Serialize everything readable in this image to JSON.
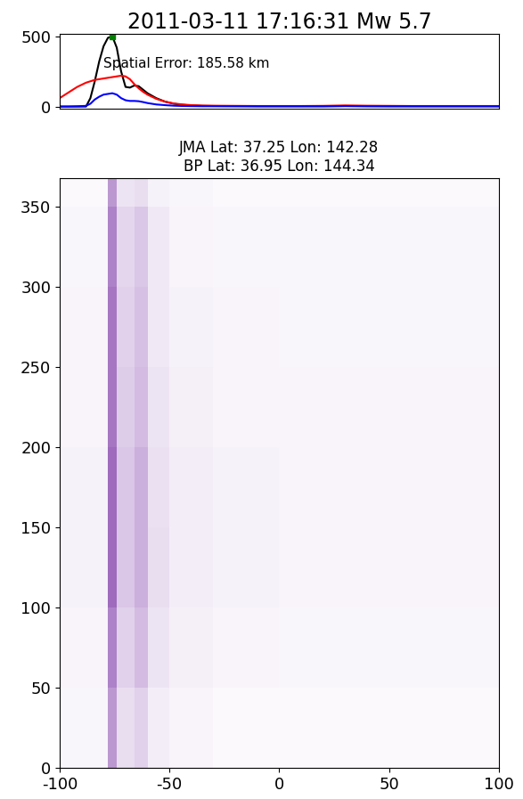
{
  "chart_data": [
    {
      "type": "line",
      "title": "2011-03-11 17:16:31 Mw 5.7",
      "annotation": "Spatial Error: 185.58 km",
      "x": [
        -100,
        -96,
        -92,
        -88,
        -86,
        -84,
        -82,
        -80,
        -78,
        -76,
        -74,
        -72,
        -70,
        -68,
        -66,
        -64,
        -62,
        -60,
        -56,
        -52,
        -48,
        -44,
        -40,
        -35,
        -30,
        -20,
        -10,
        0,
        10,
        20,
        30,
        40,
        50,
        60,
        70,
        80,
        90,
        100
      ],
      "series": [
        {
          "color": "black",
          "values": [
            0,
            0,
            0,
            0,
            60,
            180,
            320,
            430,
            490,
            500,
            420,
            250,
            140,
            135,
            150,
            145,
            120,
            95,
            60,
            35,
            20,
            12,
            8,
            5,
            4,
            3,
            2,
            2,
            2,
            2,
            4,
            3,
            2,
            2,
            2,
            2,
            2,
            2
          ]
        },
        {
          "color": "red",
          "values": [
            60,
            100,
            140,
            170,
            180,
            190,
            195,
            200,
            205,
            210,
            215,
            220,
            215,
            195,
            160,
            130,
            105,
            85,
            55,
            35,
            22,
            15,
            10,
            7,
            6,
            5,
            4,
            4,
            4,
            5,
            8,
            6,
            5,
            4,
            4,
            4,
            4,
            4
          ]
        },
        {
          "color": "blue",
          "values": [
            0,
            0,
            2,
            5,
            20,
            50,
            70,
            85,
            90,
            95,
            85,
            60,
            45,
            40,
            40,
            38,
            32,
            25,
            15,
            10,
            6,
            4,
            3,
            2,
            2,
            2,
            2,
            2,
            2,
            2,
            3,
            2,
            2,
            2,
            2,
            2,
            2,
            2
          ]
        }
      ],
      "peak": {
        "x": -76,
        "value": 500,
        "color": "green",
        "marker": "s"
      },
      "xlim": [
        -100,
        100
      ],
      "ylim": [
        -15,
        520
      ],
      "yticks": [
        0,
        500
      ],
      "tick_labels": "y"
    },
    {
      "type": "heatmap",
      "title": "JMA Lat: 37.25 Lon: 142.28\nBP Lat: 36.95 Lon: 144.34",
      "color": "#6a1b9a",
      "x_edges": [
        -100,
        -78,
        -74,
        -66,
        -60,
        -50,
        -30,
        0,
        30,
        60,
        100
      ],
      "y_edges": [
        0,
        50,
        100,
        150,
        200,
        250,
        300,
        350,
        368
      ],
      "cells": [
        [
          0.04,
          0.45,
          0.15,
          0.2,
          0.08,
          0.05,
          0.03,
          0.03,
          0.03,
          0.03
        ],
        [
          0.05,
          0.55,
          0.2,
          0.3,
          0.12,
          0.07,
          0.05,
          0.04,
          0.04,
          0.04
        ],
        [
          0.06,
          0.65,
          0.25,
          0.35,
          0.15,
          0.08,
          0.06,
          0.05,
          0.05,
          0.05
        ],
        [
          0.06,
          0.65,
          0.25,
          0.35,
          0.14,
          0.08,
          0.06,
          0.05,
          0.05,
          0.05
        ],
        [
          0.05,
          0.6,
          0.22,
          0.3,
          0.12,
          0.07,
          0.05,
          0.05,
          0.05,
          0.05
        ],
        [
          0.05,
          0.6,
          0.2,
          0.28,
          0.1,
          0.06,
          0.05,
          0.04,
          0.04,
          0.04
        ],
        [
          0.04,
          0.55,
          0.18,
          0.25,
          0.1,
          0.05,
          0.04,
          0.04,
          0.04,
          0.04
        ],
        [
          0.03,
          0.45,
          0.12,
          0.15,
          0.06,
          0.04,
          0.03,
          0.03,
          0.03,
          0.03
        ]
      ],
      "color_range": [
        0,
        1
      ],
      "xlim": [
        -100,
        100
      ],
      "ylim": [
        0,
        368
      ],
      "xticks": [
        -100,
        -50,
        0,
        50,
        100
      ],
      "yticks": [
        0,
        50,
        100,
        150,
        200,
        250,
        300,
        350
      ]
    }
  ]
}
